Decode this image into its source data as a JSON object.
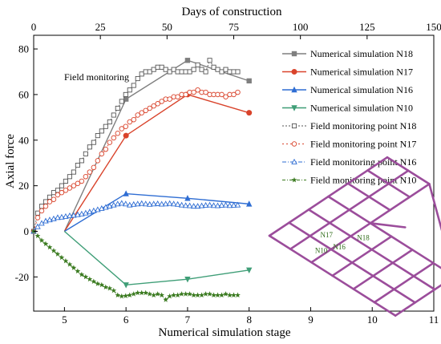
{
  "chart_data": {
    "type": "line",
    "xlabel": "Numerical simulation stage",
    "x2label": "Days of construction",
    "ylabel": "Axial force",
    "xlim": [
      4.5,
      11
    ],
    "x2lim": [
      0,
      150
    ],
    "ylim": [
      -35,
      86
    ],
    "x_ticks": [
      5,
      6,
      7,
      8,
      9,
      10,
      11
    ],
    "x2_ticks": [
      0,
      25,
      50,
      75,
      100,
      125,
      150
    ],
    "y_ticks": [
      -20,
      0,
      20,
      40,
      60,
      80
    ],
    "annotation": "Field monitoring",
    "legend_position": "right",
    "simulation_series": [
      {
        "name": "Numerical simulation  N18",
        "color": "#7f7f7f",
        "marker": "square",
        "x": [
          5,
          6,
          7,
          8
        ],
        "y": [
          0,
          58,
          75,
          66
        ]
      },
      {
        "name": "Numerical simulation  N17",
        "color": "#d9432b",
        "marker": "circle",
        "x": [
          5,
          6,
          7,
          8
        ],
        "y": [
          0,
          42,
          60,
          52
        ]
      },
      {
        "name": "Numerical simulation  N16",
        "color": "#2e6dd3",
        "marker": "triangle",
        "x": [
          5,
          6,
          7,
          8
        ],
        "y": [
          0,
          16.5,
          14.5,
          12
        ]
      },
      {
        "name": "Numerical simulation  N10",
        "color": "#3f9e77",
        "marker": "triangle-down",
        "x": [
          5,
          6,
          7,
          8
        ],
        "y": [
          0,
          -23.5,
          -21,
          -17
        ]
      }
    ],
    "field_series": [
      {
        "name": "Field monitoring point  N18",
        "color": "#555555",
        "marker": "open-square",
        "days": [
          0,
          1.5,
          3,
          4.5,
          6,
          7.5,
          9,
          10.5,
          12,
          13.5,
          15,
          16.5,
          18,
          19.5,
          21,
          22.5,
          24,
          25.5,
          27,
          28.5,
          30,
          31.5,
          33,
          34.5,
          36,
          37.5,
          39,
          40.5,
          42,
          43.5,
          45,
          46.5,
          48,
          49.5,
          51,
          52.5,
          54,
          55.5,
          57,
          58.5,
          60,
          61.5,
          63,
          64.5,
          66,
          67.5,
          69,
          70.5,
          72,
          73.5,
          75,
          76.5
        ],
        "y": [
          0,
          8,
          11,
          13,
          15,
          17,
          18,
          20,
          22,
          24,
          26,
          29,
          31,
          34,
          37,
          39,
          42,
          44,
          46,
          48,
          51,
          54,
          57,
          60,
          62,
          64,
          67,
          69,
          70,
          70,
          71,
          72,
          72,
          71,
          70,
          71,
          70,
          70,
          70,
          70,
          71,
          73,
          71,
          70,
          75,
          72,
          71,
          70,
          71,
          70,
          70,
          70
        ]
      },
      {
        "name": "Field monitoring point  N17",
        "color": "#d9432b",
        "marker": "open-circle",
        "days": [
          0,
          1.5,
          3,
          4.5,
          6,
          7.5,
          9,
          10.5,
          12,
          13.5,
          15,
          16.5,
          18,
          19.5,
          21,
          22.5,
          24,
          25.5,
          27,
          28.5,
          30,
          31.5,
          33,
          34.5,
          36,
          37.5,
          39,
          40.5,
          42,
          43.5,
          45,
          46.5,
          48,
          49.5,
          51,
          52.5,
          54,
          55.5,
          57,
          58.5,
          60,
          61.5,
          63,
          64.5,
          66,
          67.5,
          69,
          70.5,
          72,
          73.5,
          75,
          76.5
        ],
        "y": [
          0,
          6,
          9,
          11,
          13,
          14,
          16,
          17,
          18,
          19,
          20,
          21,
          22,
          24,
          26,
          28,
          31,
          34,
          36,
          39,
          41,
          43,
          45,
          46,
          48,
          49,
          51,
          52,
          53,
          54,
          55,
          56,
          57,
          58,
          58,
          59,
          59,
          60,
          60,
          61,
          61,
          62,
          61,
          61,
          60,
          60,
          60,
          60,
          59,
          60,
          60,
          61
        ]
      },
      {
        "name": "Field monitoring point  N16",
        "color": "#2e6dd3",
        "marker": "open-triangle",
        "days": [
          0,
          1.5,
          3,
          4.5,
          6,
          7.5,
          9,
          10.5,
          12,
          13.5,
          15,
          16.5,
          18,
          19.5,
          21,
          22.5,
          24,
          25.5,
          27,
          28.5,
          30,
          31.5,
          33,
          34.5,
          36,
          37.5,
          39,
          40.5,
          42,
          43.5,
          45,
          46.5,
          48,
          49.5,
          51,
          52.5,
          54,
          55.5,
          57,
          58.5,
          60,
          61.5,
          63,
          64.5,
          66,
          67.5,
          69,
          70.5,
          72,
          73.5,
          75,
          76.5
        ],
        "y": [
          0,
          2,
          3.5,
          4.5,
          5,
          5.5,
          6,
          6.2,
          6.5,
          6.8,
          7,
          7.3,
          7.6,
          8,
          8.5,
          9,
          9.5,
          10,
          10.5,
          11,
          11.5,
          12,
          12.3,
          12,
          11.5,
          11.8,
          12,
          12.2,
          12,
          11.8,
          12,
          12.1,
          11.9,
          12,
          12.2,
          12,
          11.8,
          11.5,
          11.3,
          11.2,
          11,
          11,
          11.2,
          11.4,
          11.5,
          11.3,
          11.2,
          11.4,
          11.5,
          11.3,
          11.4,
          11.5
        ]
      },
      {
        "name": "Field monitoring point  N10",
        "color": "#3a7a1f",
        "marker": "star",
        "days": [
          0,
          1.5,
          3,
          4.5,
          6,
          7.5,
          9,
          10.5,
          12,
          13.5,
          15,
          16.5,
          18,
          19.5,
          21,
          22.5,
          24,
          25.5,
          27,
          28.5,
          30,
          31.5,
          33,
          34.5,
          36,
          37.5,
          39,
          40.5,
          42,
          43.5,
          45,
          46.5,
          48,
          49.5,
          51,
          52.5,
          54,
          55.5,
          57,
          58.5,
          60,
          61.5,
          63,
          64.5,
          66,
          67.5,
          69,
          70.5,
          72,
          73.5,
          75,
          76.5
        ],
        "y": [
          0,
          -2,
          -4,
          -5.5,
          -7,
          -8.5,
          -10,
          -11.5,
          -13,
          -14.5,
          -16,
          -17.5,
          -19,
          -20,
          -21,
          -22,
          -23,
          -23.5,
          -24.5,
          -25,
          -26,
          -28,
          -28.5,
          -28.3,
          -28,
          -27.5,
          -27,
          -27,
          -27,
          -27.5,
          -28,
          -27.5,
          -28,
          -30,
          -28.5,
          -28,
          -28,
          -27.5,
          -27.5,
          -27.5,
          -28,
          -28,
          -28,
          -27.5,
          -27.5,
          -28,
          -28,
          -28,
          -27.5,
          -28,
          -28,
          -28
        ]
      }
    ]
  },
  "inset": {
    "labels": [
      {
        "text": "N17",
        "color": "#2e6b17"
      },
      {
        "text": "N18",
        "color": "#2e6b17"
      },
      {
        "text": "N16",
        "color": "#2e6b17"
      },
      {
        "text": "N10",
        "color": "#2e6b17"
      }
    ],
    "frame_color": "#9b4d9b"
  }
}
